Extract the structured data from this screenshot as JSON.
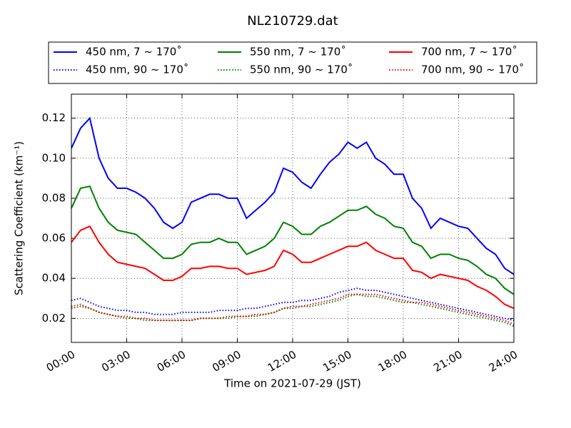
{
  "chart_data": {
    "type": "line",
    "title": "NL210729.dat",
    "x_label": "Time on 2021-07-29 (JST)",
    "y_label": "Scattering Coefficient (km⁻¹)",
    "x": [
      0,
      0.5,
      1,
      1.5,
      2,
      2.5,
      3,
      3.5,
      4,
      4.5,
      5,
      5.5,
      6,
      6.5,
      7,
      7.5,
      8,
      8.5,
      9,
      9.5,
      10,
      10.5,
      11,
      11.5,
      12,
      12.5,
      13,
      13.5,
      14,
      14.5,
      15,
      15.5,
      16,
      16.5,
      17,
      17.5,
      18,
      18.5,
      19,
      19.5,
      20,
      20.5,
      21,
      21.5,
      22,
      22.5,
      23,
      23.5,
      24
    ],
    "xlim": [
      0,
      24
    ],
    "xticks": [
      {
        "value": 0,
        "label": "00:00"
      },
      {
        "value": 3,
        "label": "03:00"
      },
      {
        "value": 6,
        "label": "06:00"
      },
      {
        "value": 9,
        "label": "09:00"
      },
      {
        "value": 12,
        "label": "12:00"
      },
      {
        "value": 15,
        "label": "15:00"
      },
      {
        "value": 18,
        "label": "18:00"
      },
      {
        "value": 21,
        "label": "21:00"
      },
      {
        "value": 24,
        "label": "24:00"
      }
    ],
    "ylim": [
      0.008,
      0.132
    ],
    "yticks": [
      0.02,
      0.04,
      0.06,
      0.08,
      {
        "value": 0.1,
        "label": "0.10"
      },
      0.12
    ],
    "grid": true,
    "legend": "top",
    "series": [
      {
        "name": "450 nm, 7 ~ 170˚",
        "color": "#0000ff",
        "linestyle": "solid",
        "values": [
          0.105,
          0.115,
          0.12,
          0.1,
          0.09,
          0.085,
          0.085,
          0.083,
          0.08,
          0.075,
          0.068,
          0.065,
          0.068,
          0.078,
          0.08,
          0.082,
          0.082,
          0.08,
          0.08,
          0.07,
          0.074,
          0.078,
          0.083,
          0.095,
          0.093,
          0.088,
          0.085,
          0.092,
          0.098,
          0.102,
          0.108,
          0.105,
          0.108,
          0.1,
          0.097,
          0.092,
          0.092,
          0.08,
          0.075,
          0.065,
          0.07,
          0.068,
          0.066,
          0.065,
          0.06,
          0.055,
          0.052,
          0.045,
          0.042
        ]
      },
      {
        "name": "450 nm, 90 ~ 170˚",
        "color": "#0000ff",
        "linestyle": "dotted",
        "values": [
          0.029,
          0.03,
          0.028,
          0.026,
          0.025,
          0.024,
          0.024,
          0.023,
          0.023,
          0.022,
          0.022,
          0.022,
          0.023,
          0.023,
          0.023,
          0.023,
          0.024,
          0.024,
          0.024,
          0.025,
          0.025,
          0.026,
          0.027,
          0.028,
          0.028,
          0.029,
          0.029,
          0.03,
          0.031,
          0.033,
          0.034,
          0.035,
          0.034,
          0.034,
          0.033,
          0.032,
          0.031,
          0.03,
          0.029,
          0.028,
          0.027,
          0.026,
          0.025,
          0.024,
          0.023,
          0.022,
          0.021,
          0.02,
          0.019
        ]
      },
      {
        "name": "550 nm, 7 ~ 170˚",
        "color": "#008000",
        "linestyle": "solid",
        "values": [
          0.075,
          0.085,
          0.086,
          0.075,
          0.068,
          0.064,
          0.063,
          0.062,
          0.058,
          0.054,
          0.05,
          0.05,
          0.052,
          0.057,
          0.058,
          0.058,
          0.06,
          0.058,
          0.058,
          0.052,
          0.054,
          0.056,
          0.06,
          0.068,
          0.066,
          0.062,
          0.062,
          0.066,
          0.068,
          0.071,
          0.074,
          0.074,
          0.076,
          0.072,
          0.07,
          0.066,
          0.065,
          0.058,
          0.056,
          0.05,
          0.052,
          0.052,
          0.05,
          0.049,
          0.046,
          0.042,
          0.04,
          0.035,
          0.032
        ]
      },
      {
        "name": "550 nm, 90 ~ 170˚",
        "color": "#008000",
        "linestyle": "dotted",
        "values": [
          0.026,
          0.027,
          0.025,
          0.023,
          0.022,
          0.021,
          0.02,
          0.02,
          0.019,
          0.019,
          0.019,
          0.019,
          0.019,
          0.019,
          0.02,
          0.02,
          0.02,
          0.02,
          0.021,
          0.021,
          0.021,
          0.022,
          0.023,
          0.025,
          0.025,
          0.026,
          0.026,
          0.027,
          0.028,
          0.029,
          0.031,
          0.032,
          0.031,
          0.031,
          0.03,
          0.029,
          0.028,
          0.028,
          0.027,
          0.026,
          0.025,
          0.024,
          0.023,
          0.022,
          0.021,
          0.02,
          0.019,
          0.018,
          0.016
        ]
      },
      {
        "name": "700 nm, 7 ~ 170˚",
        "color": "#ff0000",
        "linestyle": "solid",
        "values": [
          0.058,
          0.064,
          0.066,
          0.058,
          0.052,
          0.048,
          0.047,
          0.046,
          0.045,
          0.042,
          0.039,
          0.039,
          0.041,
          0.045,
          0.045,
          0.046,
          0.046,
          0.045,
          0.045,
          0.042,
          0.043,
          0.044,
          0.046,
          0.054,
          0.052,
          0.048,
          0.048,
          0.05,
          0.052,
          0.054,
          0.056,
          0.056,
          0.058,
          0.054,
          0.052,
          0.05,
          0.05,
          0.044,
          0.043,
          0.04,
          0.042,
          0.041,
          0.04,
          0.039,
          0.036,
          0.034,
          0.031,
          0.027,
          0.025
        ]
      },
      {
        "name": "700 nm, 90 ~ 170˚",
        "color": "#ff0000",
        "linestyle": "dotted",
        "values": [
          0.025,
          0.026,
          0.025,
          0.023,
          0.022,
          0.021,
          0.021,
          0.02,
          0.02,
          0.019,
          0.019,
          0.019,
          0.019,
          0.019,
          0.02,
          0.02,
          0.02,
          0.021,
          0.021,
          0.021,
          0.022,
          0.022,
          0.023,
          0.025,
          0.026,
          0.026,
          0.027,
          0.028,
          0.029,
          0.03,
          0.032,
          0.032,
          0.032,
          0.032,
          0.031,
          0.03,
          0.029,
          0.028,
          0.028,
          0.027,
          0.026,
          0.025,
          0.024,
          0.023,
          0.022,
          0.021,
          0.02,
          0.019,
          0.017
        ]
      }
    ]
  }
}
